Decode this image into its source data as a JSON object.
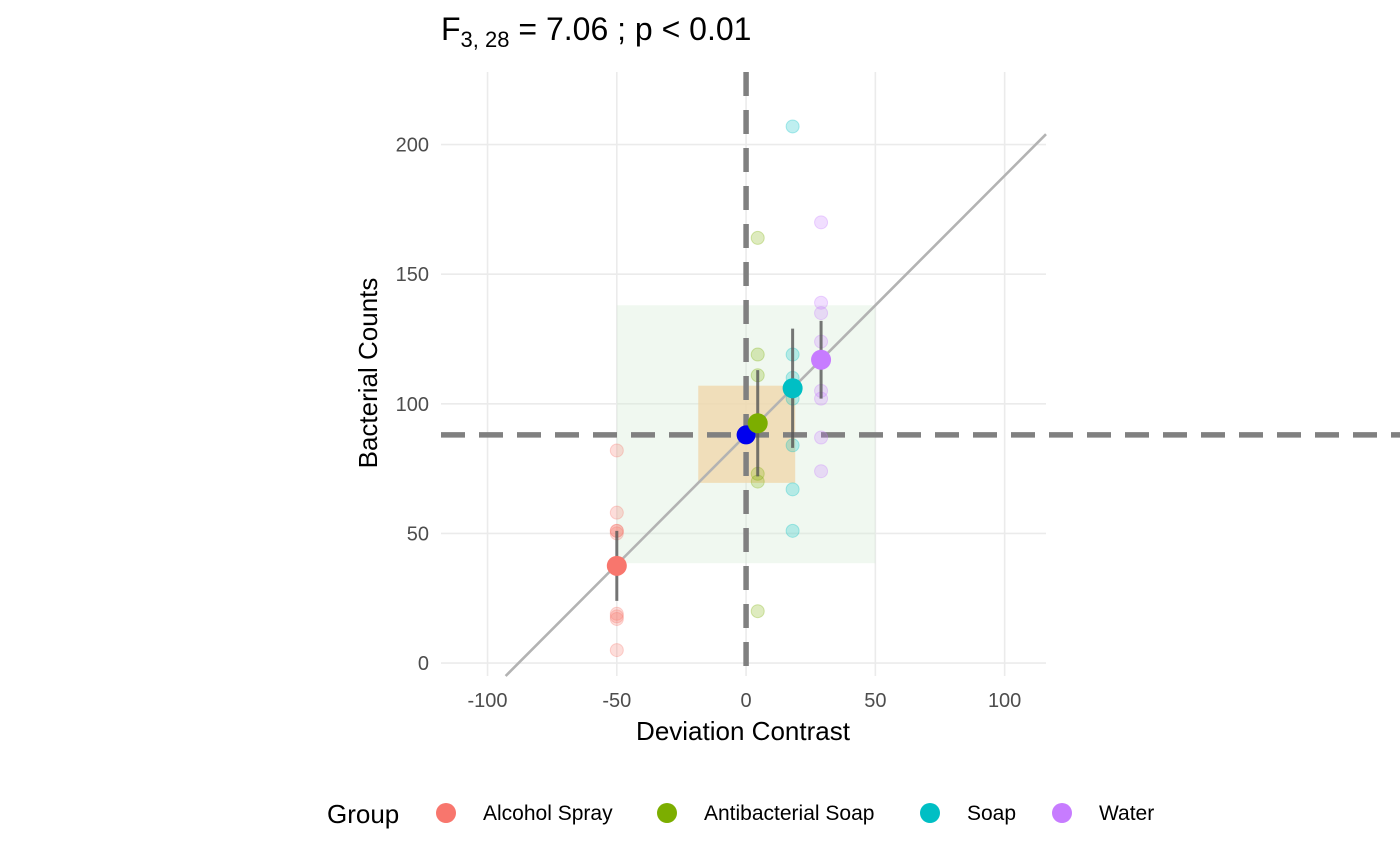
{
  "chart_data": {
    "type": "scatter",
    "title": {
      "prefix": "F",
      "subscript": "3, 28",
      "rest": " = 7.06 ; p  < 0.01"
    },
    "xlabel": "Deviation Contrast",
    "ylabel": "Bacterial Counts",
    "xlim": [
      -118,
      116
    ],
    "ylim": [
      -5,
      228
    ],
    "x_ticks": [
      -100,
      -50,
      0,
      50,
      100
    ],
    "y_ticks": [
      0,
      50,
      100,
      150,
      200
    ],
    "grid": true,
    "grand_mean": 88,
    "fit_line": {
      "slope": 1,
      "intercept": 88
    },
    "effect_rect": {
      "x": [
        -50,
        50
      ],
      "y": [
        38.5,
        138
      ]
    },
    "residual_rect": {
      "x": [
        -18.5,
        19
      ],
      "y": [
        69.5,
        107
      ]
    },
    "colors": {
      "Alcohol Spray": "#F8766D",
      "Antibacterial Soap": "#7CAE00",
      "Soap": "#00BFC4",
      "Water": "#C77CFF",
      "grand_mean_point": "#0000EE",
      "reference_lines": "#808080",
      "fit_line": "#B3B3B3",
      "effect_rect": "#D4EAD4",
      "residual_rect": "#F0D6A8"
    },
    "groups": [
      {
        "name": "Alcohol Spray",
        "x": -50,
        "mean": 37.5,
        "ci": [
          24,
          51
        ],
        "points": [
          82,
          58,
          51,
          50,
          51,
          19,
          18,
          17,
          5
        ]
      },
      {
        "name": "Antibacterial Soap",
        "x": 4.5,
        "mean": 92.5,
        "ci": [
          72,
          113
        ],
        "points": [
          164,
          119,
          111,
          73,
          70,
          20
        ]
      },
      {
        "name": "Soap",
        "x": 18,
        "mean": 106,
        "ci": [
          83,
          129
        ],
        "points": [
          207,
          119,
          110,
          102,
          84,
          67,
          51
        ]
      },
      {
        "name": "Water",
        "x": 29,
        "mean": 117,
        "ci": [
          102,
          132
        ],
        "points": [
          170,
          139,
          135,
          124,
          105,
          102,
          87,
          74
        ]
      }
    ],
    "legend": {
      "title": "Group",
      "position": "bottom",
      "entries": [
        "Alcohol Spray",
        "Antibacterial Soap",
        "Soap",
        "Water"
      ]
    }
  }
}
